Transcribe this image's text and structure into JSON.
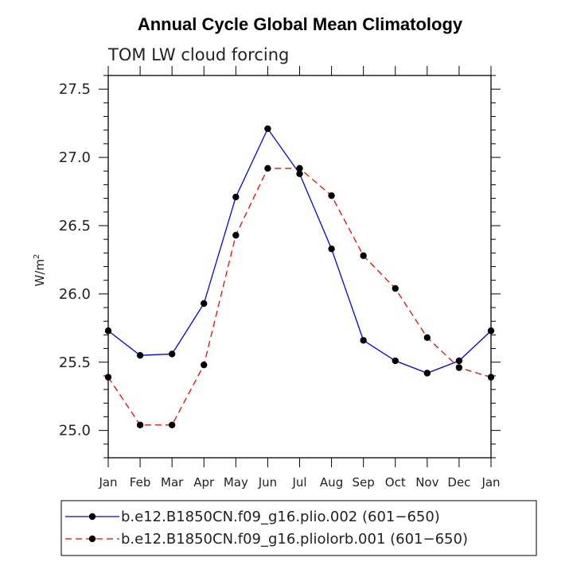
{
  "chart_data": {
    "type": "line",
    "title": "Annual Cycle Global Mean Climatology",
    "subtitle": "TOM LW cloud forcing",
    "ylabel": "W/m",
    "ylabel_sup": "2",
    "xlabel": "",
    "categories": [
      "Jan",
      "Feb",
      "Mar",
      "Apr",
      "May",
      "Jun",
      "Jul",
      "Aug",
      "Sep",
      "Oct",
      "Nov",
      "Dec",
      "Jan"
    ],
    "ylim": [
      24.8,
      27.6
    ],
    "yticks": [
      25.0,
      25.5,
      26.0,
      26.5,
      27.0,
      27.5
    ],
    "ytick_labels": [
      "25.0",
      "25.5",
      "26.0",
      "26.5",
      "27.0",
      "27.5"
    ],
    "series": [
      {
        "name": "b.e12.B1850CN.f09_g16.plio.002 (601−650)",
        "color": "#0000ff",
        "dash": "solid",
        "values": [
          25.73,
          25.55,
          25.56,
          25.93,
          26.71,
          27.21,
          26.88,
          26.33,
          25.66,
          25.51,
          25.42,
          25.51,
          25.73
        ]
      },
      {
        "name": "b.e12.B1850CN.f09_g16.pliolorb.001 (601−650)",
        "color": "#ff0000",
        "dash": "dashed",
        "values": [
          25.39,
          25.04,
          25.04,
          25.48,
          26.43,
          26.92,
          26.92,
          26.72,
          26.28,
          26.04,
          25.68,
          25.46,
          25.39
        ]
      }
    ],
    "legend_position": "bottom-left"
  }
}
